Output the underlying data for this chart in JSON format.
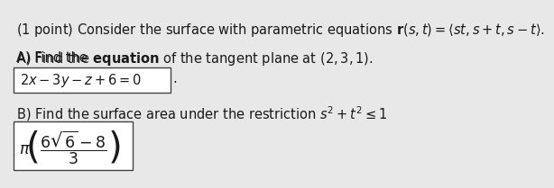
{
  "bg_color": "#e8e8e8",
  "text_color": "#1a1a1a",
  "box_edge_color": "#444444",
  "line1": "(1 point) Consider the surface with parametric equations $\\mathbf{r}(s, t) = \\langle st, s + t, s - t\\rangle$.",
  "line2a": "A) Find the ",
  "line2b": "equation",
  "line2c": " of the tangent plane at $(2, 3, 1)$.",
  "line3": "$2x - 3y - z + 6 = 0$",
  "line4": "B) Find the surface area under the restriction $s^2 + t^2 \\leq 1$",
  "line5": "$\\pi\\!\\left(\\dfrac{6\\sqrt{6}-8}{3}\\right)$",
  "fs": 10.5
}
